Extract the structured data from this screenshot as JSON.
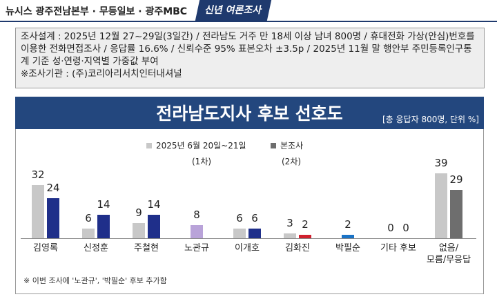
{
  "header": {
    "source": "뉴시스  광주전남본부 · 무등일보 · 광주MBC",
    "badge": "신년 여론조사"
  },
  "methodology": [
    "조사설계 : 2025년 12월 27~29일(3일간) / 전라남도 거주 만 18세 이상 남녀 800명 / 휴대전화 가상(안심)번호를 이용한 전화면접조사 / 응답률 16.6% / 신뢰수준 95% 표본오차 ±3.5p / 2025년 11월 말 행안부 주민등록인구통계 기준 성·연령·지역별 가중값 부여",
    "※조사기관 : (주)코리아리서치인터내셔널"
  ],
  "chart_data": {
    "type": "bar",
    "title": "전라남도지사 후보 선호도",
    "subtitle": "[총 응답자 800명, 단위 %]",
    "categories": [
      "김영록",
      "신정훈",
      "주철현",
      "노관규",
      "이개호",
      "김화진",
      "박필순",
      "기타 후보",
      "없음/\n모름/무응답"
    ],
    "series": [
      {
        "name": "2025년 6월 20일~21일",
        "round": "(1차)",
        "color": "#c8c8c8",
        "colors": [
          "#c8c8c8",
          "#c8c8c8",
          "#c8c8c8",
          "#c8c8c8",
          "#c8c8c8",
          "#c8c8c8",
          "#c8c8c8",
          "#c8c8c8",
          "#c8c8c8"
        ],
        "values": [
          32,
          6,
          9,
          null,
          6,
          3,
          null,
          0,
          39
        ]
      },
      {
        "name": "본조사",
        "round": "(2차)",
        "color": "#6e6e6e",
        "colors": [
          "#1f2f8a",
          "#1f2f8a",
          "#1f2f8a",
          "#b9a3d9",
          "#1f2f8a",
          "#d0202e",
          "#1a73c6",
          "#1f2f8a",
          "#6e6e6e"
        ],
        "values": [
          24,
          14,
          14,
          8,
          6,
          2,
          2,
          0,
          29
        ]
      }
    ],
    "footnote": "※ 이번 조사에 '노관규', '박필순' 후보 추가함"
  }
}
